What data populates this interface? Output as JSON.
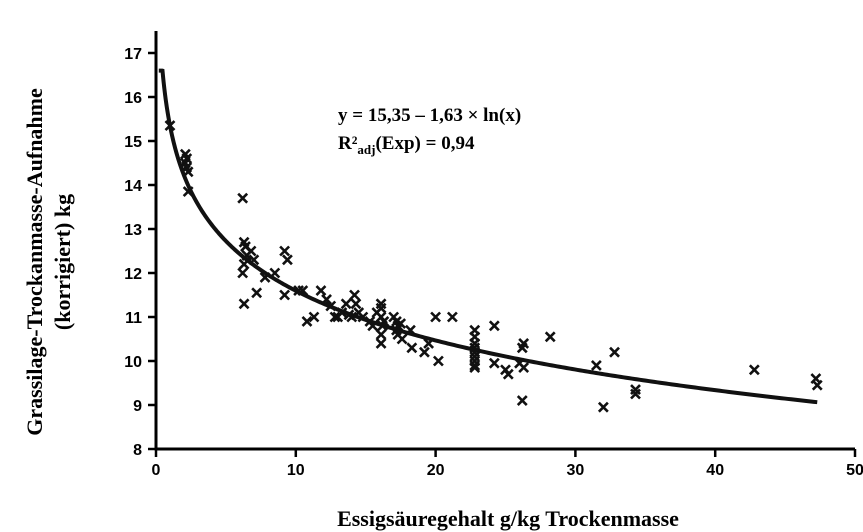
{
  "chart_data": {
    "type": "scatter",
    "title": "",
    "xlabel": "Essigsäuregehalt g/kg Trockenmasse",
    "ylabel_line1": "Grassilage-Trockanmasse-Aufnahme",
    "ylabel_line2": "(korrigiert) kg",
    "xlim": [
      0,
      50
    ],
    "ylim": [
      8,
      17.5
    ],
    "x_ticks": [
      0,
      10,
      20,
      30,
      40,
      50
    ],
    "y_ticks": [
      8,
      9,
      10,
      11,
      12,
      13,
      14,
      15,
      16,
      17
    ],
    "grid": false,
    "legend": "none",
    "annotations": {
      "equation": "y = 15,35 – 1,63 × ln(x)",
      "r2_prefix": "R²",
      "r2_sub": "adj",
      "r2_rest": "(Exp) = 0,94"
    },
    "fit_curve": {
      "type": "logarithmic",
      "intercept": 15.35,
      "slope": -1.63,
      "x_range": [
        0.2,
        47.3
      ]
    },
    "points": [
      [
        1.0,
        15.35
      ],
      [
        2.1,
        14.7
      ],
      [
        2.1,
        14.5
      ],
      [
        2.2,
        14.4
      ],
      [
        2.3,
        14.3
      ],
      [
        2.2,
        14.6
      ],
      [
        2.3,
        13.85
      ],
      [
        6.2,
        13.7
      ],
      [
        6.3,
        12.7
      ],
      [
        6.4,
        12.6
      ],
      [
        6.5,
        12.4
      ],
      [
        6.3,
        12.2
      ],
      [
        6.2,
        12.0
      ],
      [
        6.3,
        11.3
      ],
      [
        6.8,
        12.5
      ],
      [
        7.0,
        12.3
      ],
      [
        7.2,
        11.55
      ],
      [
        7.8,
        11.9
      ],
      [
        8.5,
        12.0
      ],
      [
        9.2,
        12.5
      ],
      [
        9.4,
        12.3
      ],
      [
        9.2,
        11.5
      ],
      [
        10.2,
        11.6
      ],
      [
        10.5,
        11.6
      ],
      [
        10.8,
        10.9
      ],
      [
        11.3,
        11.0
      ],
      [
        11.8,
        11.6
      ],
      [
        12.2,
        11.4
      ],
      [
        12.5,
        11.25
      ],
      [
        12.8,
        11.0
      ],
      [
        13.0,
        11.0
      ],
      [
        13.3,
        11.1
      ],
      [
        13.6,
        11.3
      ],
      [
        13.8,
        11.05
      ],
      [
        14.0,
        11.0
      ],
      [
        14.2,
        11.5
      ],
      [
        14.3,
        11.3
      ],
      [
        14.5,
        11.1
      ],
      [
        14.8,
        11.0
      ],
      [
        15.3,
        10.9
      ],
      [
        15.5,
        10.8
      ],
      [
        15.8,
        11.1
      ],
      [
        16.1,
        11.3
      ],
      [
        16.1,
        11.2
      ],
      [
        16.1,
        11.0
      ],
      [
        16.2,
        10.8
      ],
      [
        16.1,
        10.6
      ],
      [
        16.1,
        10.4
      ],
      [
        16.3,
        10.9
      ],
      [
        17.0,
        11.0
      ],
      [
        17.2,
        10.9
      ],
      [
        17.3,
        10.8
      ],
      [
        17.2,
        10.7
      ],
      [
        17.3,
        10.6
      ],
      [
        17.5,
        10.85
      ],
      [
        17.6,
        10.5
      ],
      [
        18.2,
        10.7
      ],
      [
        18.3,
        10.3
      ],
      [
        19.2,
        10.2
      ],
      [
        19.5,
        10.4
      ],
      [
        20.0,
        11.0
      ],
      [
        20.2,
        10.0
      ],
      [
        21.2,
        11.0
      ],
      [
        22.8,
        10.7
      ],
      [
        22.8,
        10.55
      ],
      [
        22.8,
        10.4
      ],
      [
        22.8,
        10.3
      ],
      [
        22.8,
        10.2
      ],
      [
        22.8,
        10.1
      ],
      [
        22.8,
        10.0
      ],
      [
        22.8,
        9.9
      ],
      [
        22.8,
        9.85
      ],
      [
        24.2,
        10.8
      ],
      [
        24.2,
        9.95
      ],
      [
        25.0,
        9.8
      ],
      [
        25.2,
        9.7
      ],
      [
        26.0,
        9.95
      ],
      [
        26.2,
        10.3
      ],
      [
        26.3,
        10.4
      ],
      [
        26.3,
        9.85
      ],
      [
        26.2,
        9.1
      ],
      [
        28.2,
        10.55
      ],
      [
        31.5,
        9.9
      ],
      [
        32.0,
        8.95
      ],
      [
        32.8,
        10.2
      ],
      [
        34.3,
        9.25
      ],
      [
        34.3,
        9.35
      ],
      [
        42.8,
        9.8
      ],
      [
        47.2,
        9.6
      ],
      [
        47.3,
        9.45
      ]
    ]
  }
}
